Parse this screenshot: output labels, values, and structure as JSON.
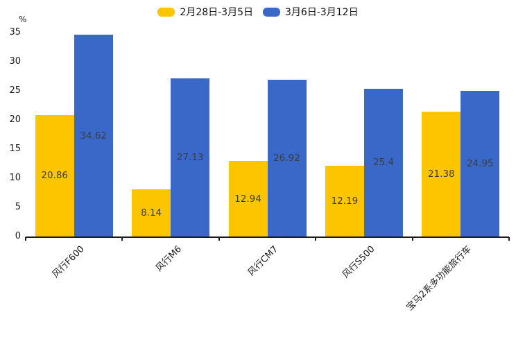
{
  "chart_data": {
    "type": "bar",
    "title": "",
    "xlabel": "",
    "ylabel": "%",
    "ylim": [
      0,
      35
    ],
    "yticks": [
      0,
      5,
      10,
      15,
      20,
      25,
      30,
      35
    ],
    "grid": false,
    "legend_position": "top",
    "categories": [
      "风行F600",
      "风行M6",
      "风行CM7",
      "风行S500",
      "宝马2系多功能旅行车"
    ],
    "series": [
      {
        "name": "2月28日-3月5日",
        "color": "#FDC500",
        "values": [
          20.86,
          8.14,
          12.94,
          12.19,
          21.38
        ]
      },
      {
        "name": "3月6日-3月12日",
        "color": "#3A68C8",
        "values": [
          34.62,
          27.13,
          26.92,
          25.4,
          24.95
        ]
      }
    ],
    "value_label_color": "#3D3D3D",
    "axis_color": "#1A1A1A"
  }
}
